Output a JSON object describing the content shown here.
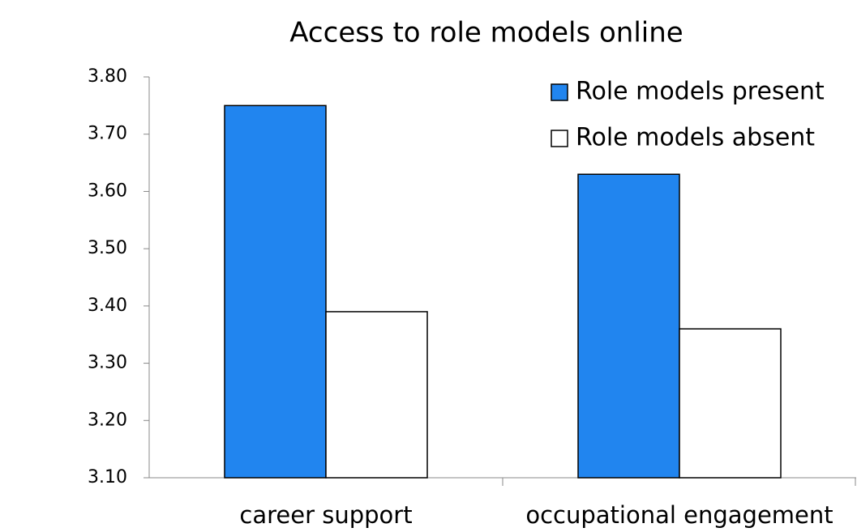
{
  "chart_data": {
    "type": "bar",
    "title": "Access to role models online",
    "categories": [
      "career support",
      "occupational engagement"
    ],
    "series": [
      {
        "name": "Role models present",
        "color": "#2185ef",
        "values": [
          3.75,
          3.63
        ]
      },
      {
        "name": "Role models absent",
        "color": "#ffffff",
        "values": [
          3.39,
          3.36
        ]
      }
    ],
    "ylim": [
      3.1,
      3.8
    ],
    "yticks": [
      {
        "value": 3.1,
        "label": "3.10"
      },
      {
        "value": 3.2,
        "label": "3.20"
      },
      {
        "value": 3.3,
        "label": "3.30"
      },
      {
        "value": 3.4,
        "label": "3.40"
      },
      {
        "value": 3.5,
        "label": "3.50"
      },
      {
        "value": 3.6,
        "label": "3.60"
      },
      {
        "value": 3.7,
        "label": "3.70"
      },
      {
        "value": 3.8,
        "label": "3.80"
      }
    ],
    "grid": false,
    "legend": "top-right"
  }
}
